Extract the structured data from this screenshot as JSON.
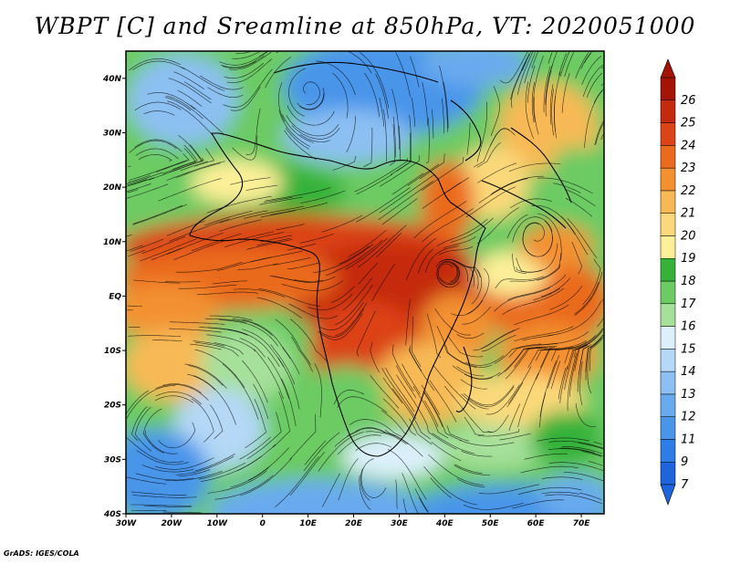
{
  "title": "WBPT [C] and Sreamline at 850hPa, VT: 2020051000",
  "credit": "GrADS: IGES/COLA",
  "map": {
    "lon_range": [
      -30,
      75
    ],
    "lat_range": [
      -40,
      45
    ],
    "lat_ticks": [
      {
        "value": 40,
        "label": "40N"
      },
      {
        "value": 30,
        "label": "30N"
      },
      {
        "value": 20,
        "label": "20N"
      },
      {
        "value": 10,
        "label": "10N"
      },
      {
        "value": 0,
        "label": "EQ"
      },
      {
        "value": -10,
        "label": "10S"
      },
      {
        "value": -20,
        "label": "20S"
      },
      {
        "value": -30,
        "label": "30S"
      },
      {
        "value": -40,
        "label": "40S"
      }
    ],
    "lon_ticks": [
      {
        "value": -30,
        "label": "30W"
      },
      {
        "value": -20,
        "label": "20W"
      },
      {
        "value": -10,
        "label": "10W"
      },
      {
        "value": 0,
        "label": "0"
      },
      {
        "value": 10,
        "label": "10E"
      },
      {
        "value": 20,
        "label": "20E"
      },
      {
        "value": 30,
        "label": "30E"
      },
      {
        "value": 40,
        "label": "40E"
      },
      {
        "value": 50,
        "label": "50E"
      },
      {
        "value": 60,
        "label": "60E"
      },
      {
        "value": 70,
        "label": "70E"
      }
    ]
  },
  "colorbar": {
    "levels": [
      "7",
      "9",
      "11",
      "12",
      "13",
      "14",
      "15",
      "16",
      "17",
      "18",
      "19",
      "20",
      "21",
      "22",
      "23",
      "24",
      "25",
      "26"
    ],
    "colors": [
      "#1e64dc",
      "#2e7de6",
      "#4a95ea",
      "#69aaee",
      "#8cc0f2",
      "#b4d8f6",
      "#dcf0fb",
      "#a6e09a",
      "#6ccb63",
      "#36b23a",
      "#fdf098",
      "#fbd97a",
      "#f7b955",
      "#f39131",
      "#ea6a1e",
      "#dc4317",
      "#c52a10",
      "#a31407"
    ]
  }
}
